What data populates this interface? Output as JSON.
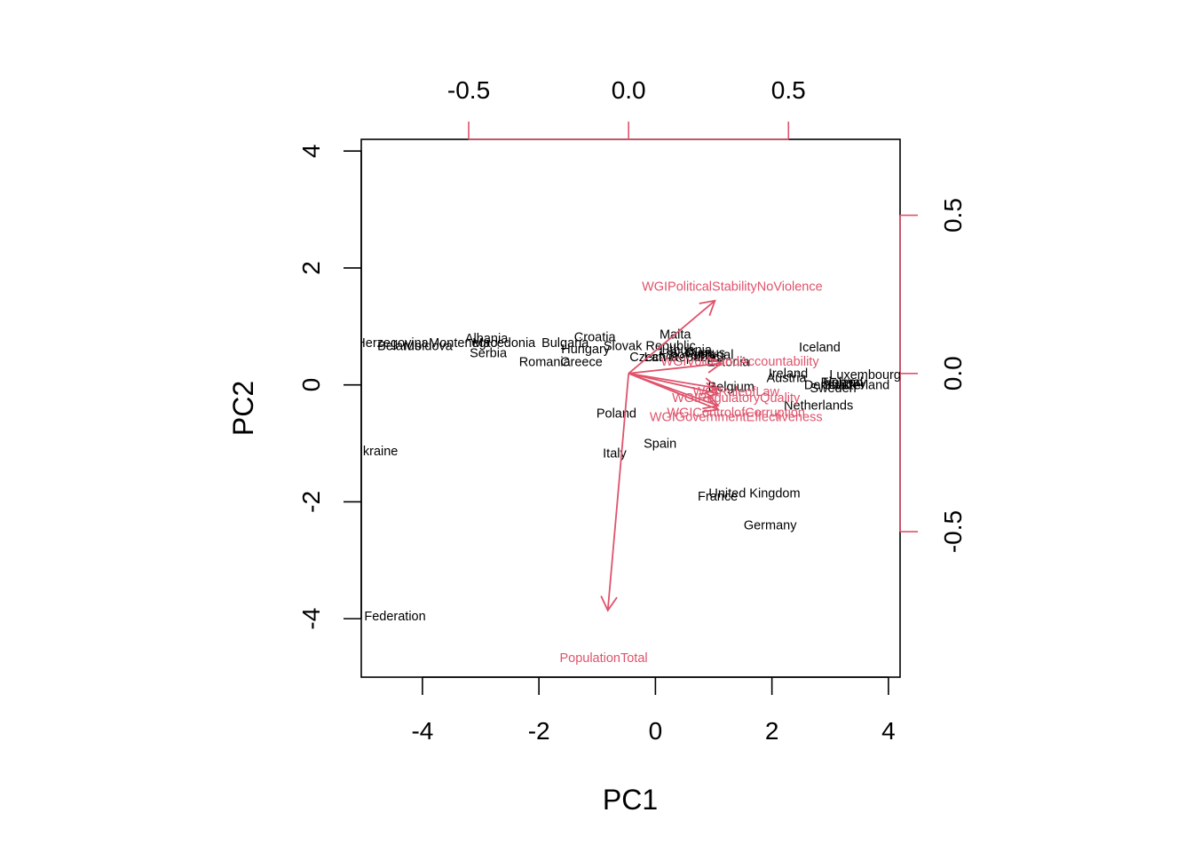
{
  "chart_data": {
    "type": "scatter",
    "title": "",
    "xlabel": "PC1",
    "ylabel": "PC2",
    "grid": false,
    "xlim": [
      -5.05,
      4.2
    ],
    "ylim": [
      -5.0,
      4.2
    ],
    "xticks": [
      "-4",
      "-2",
      "0",
      "2",
      "4"
    ],
    "yticks": [
      "-4",
      "-2",
      "0",
      "2",
      "4"
    ],
    "top_axis": {
      "range": [
        -0.836,
        0.849
      ],
      "ticks": [
        "-0.5",
        "0.0",
        "0.5"
      ]
    },
    "right_axis": {
      "range": [
        -0.96,
        0.74
      ],
      "ticks": [
        "-0.5",
        "0.0",
        "0.5"
      ]
    },
    "colors": {
      "observations": "#000000",
      "loadings": "#DF536B",
      "frame": "#000000"
    },
    "observations": [
      {
        "name": "Bosnia and Herzegovina",
        "x": -5.1,
        "y": 0.72
      },
      {
        "name": "Belarus",
        "x": -4.4,
        "y": 0.67
      },
      {
        "name": "Moldova",
        "x": -3.9,
        "y": 0.67
      },
      {
        "name": "Montenegro",
        "x": -3.3,
        "y": 0.72
      },
      {
        "name": "Albania",
        "x": -2.9,
        "y": 0.8
      },
      {
        "name": "Macedonia",
        "x": -2.6,
        "y": 0.72
      },
      {
        "name": "Serbia",
        "x": -2.87,
        "y": 0.55
      },
      {
        "name": "Bulgaria",
        "x": -1.55,
        "y": 0.72
      },
      {
        "name": "Croatia",
        "x": -1.04,
        "y": 0.82
      },
      {
        "name": "Hungary",
        "x": -1.2,
        "y": 0.62
      },
      {
        "name": "Romania",
        "x": -1.9,
        "y": 0.4
      },
      {
        "name": "Greece",
        "x": -1.27,
        "y": 0.4
      },
      {
        "name": "Slovak Republic",
        "x": -0.1,
        "y": 0.67
      },
      {
        "name": "Malta",
        "x": 0.34,
        "y": 0.87
      },
      {
        "name": "Czech Republic",
        "x": 0.33,
        "y": 0.48
      },
      {
        "name": "Latvia",
        "x": 0.1,
        "y": 0.48
      },
      {
        "name": "Lithuania",
        "x": 0.52,
        "y": 0.6
      },
      {
        "name": "Slovenia",
        "x": 0.6,
        "y": 0.52
      },
      {
        "name": "Cyprus",
        "x": 0.85,
        "y": 0.55
      },
      {
        "name": "Portugal",
        "x": 0.93,
        "y": 0.52
      },
      {
        "name": "Estonia",
        "x": 1.25,
        "y": 0.4
      },
      {
        "name": "Iceland",
        "x": 2.82,
        "y": 0.65
      },
      {
        "name": "Ireland",
        "x": 2.28,
        "y": 0.2
      },
      {
        "name": "Austria",
        "x": 2.25,
        "y": 0.12
      },
      {
        "name": "Luxembourg",
        "x": 3.6,
        "y": 0.18
      },
      {
        "name": "Denmark",
        "x": 3.0,
        "y": 0.0
      },
      {
        "name": "Finland",
        "x": 3.2,
        "y": 0.05
      },
      {
        "name": "Norway",
        "x": 3.25,
        "y": 0.05
      },
      {
        "name": "Switzerland",
        "x": 3.45,
        "y": 0.0
      },
      {
        "name": "Sweden",
        "x": 3.05,
        "y": -0.05
      },
      {
        "name": "Belgium",
        "x": 1.3,
        "y": -0.03
      },
      {
        "name": "Netherlands",
        "x": 2.8,
        "y": -0.35
      },
      {
        "name": "Poland",
        "x": -0.67,
        "y": -0.48
      },
      {
        "name": "Spain",
        "x": 0.08,
        "y": -1.0
      },
      {
        "name": "Italy",
        "x": -0.7,
        "y": -1.17
      },
      {
        "name": "Ukraine",
        "x": -4.8,
        "y": -1.13
      },
      {
        "name": "United Kingdom",
        "x": 1.7,
        "y": -1.85
      },
      {
        "name": "France",
        "x": 1.07,
        "y": -1.9
      },
      {
        "name": "Germany",
        "x": 1.97,
        "y": -2.4
      },
      {
        "name": "Russian Federation",
        "x": -4.9,
        "y": -3.95
      }
    ],
    "loadings": [
      {
        "name": "WGIPoliticalStabilityNoViolence",
        "x": 0.27,
        "y": 0.23
      },
      {
        "name": "WGIVoiceandAccountability",
        "x": 0.29,
        "y": 0.032
      },
      {
        "name": "WGIRuleofLaw",
        "x": 0.28,
        "y": -0.047
      },
      {
        "name": "WGIRegulatoryQuality",
        "x": 0.28,
        "y": -0.064
      },
      {
        "name": "WGIControlofCorruption",
        "x": 0.28,
        "y": -0.102
      },
      {
        "name": "WGIGovernmentEffectiveness",
        "x": 0.28,
        "y": -0.114
      },
      {
        "name": "PopulationTotal",
        "x": -0.065,
        "y": -0.749
      }
    ]
  }
}
